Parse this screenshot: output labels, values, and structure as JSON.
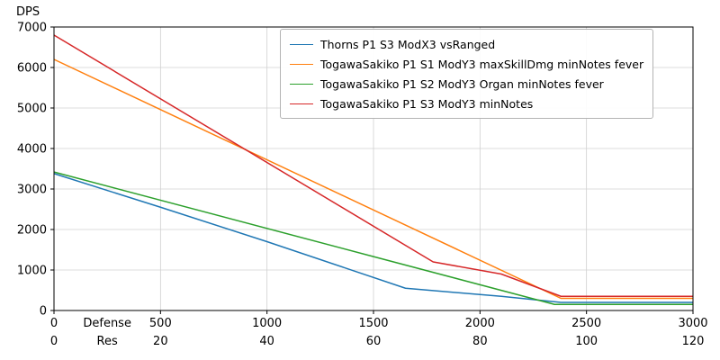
{
  "figure": {
    "ylabel": "DPS"
  },
  "chart_data": {
    "type": "line",
    "title": "",
    "ylabel": "DPS",
    "xlabel_rows": [
      "Defense",
      "Res"
    ],
    "xlim": [
      0,
      3000
    ],
    "ylim": [
      0,
      7000
    ],
    "grid": true,
    "legend_position": "upper center",
    "x_ticks_defense": [
      0,
      500,
      1000,
      1500,
      2000,
      2500,
      3000
    ],
    "x_ticks_res": [
      0,
      20,
      40,
      60,
      80,
      100,
      120
    ],
    "y_ticks": [
      0,
      1000,
      2000,
      3000,
      4000,
      5000,
      6000,
      7000
    ],
    "grid_color": "#d0d0d0",
    "axis_color": "#000000",
    "series": [
      {
        "name": "Thorns P1 S3 ModX3 vsRanged",
        "color": "#1f77b4",
        "points": [
          [
            0,
            3380
          ],
          [
            500,
            2550
          ],
          [
            1000,
            1700
          ],
          [
            1650,
            550
          ],
          [
            2100,
            350
          ],
          [
            2380,
            200
          ],
          [
            3000,
            200
          ]
        ]
      },
      {
        "name": "TogawaSakiko P1 S1 ModY3 maxSkillDmg minNotes fever",
        "color": "#ff7f0e",
        "points": [
          [
            0,
            6200
          ],
          [
            2380,
            300
          ],
          [
            3000,
            300
          ]
        ]
      },
      {
        "name": "TogawaSakiko P1 S2 ModY3 Organ minNotes fever",
        "color": "#2ca02c",
        "points": [
          [
            0,
            3420
          ],
          [
            1500,
            1330
          ],
          [
            2350,
            150
          ],
          [
            3000,
            150
          ]
        ]
      },
      {
        "name": "TogawaSakiko P1 S3 ModY3 minNotes",
        "color": "#d62728",
        "points": [
          [
            0,
            6800
          ],
          [
            1780,
            1200
          ],
          [
            2100,
            900
          ],
          [
            2380,
            350
          ],
          [
            3000,
            350
          ]
        ]
      }
    ]
  }
}
